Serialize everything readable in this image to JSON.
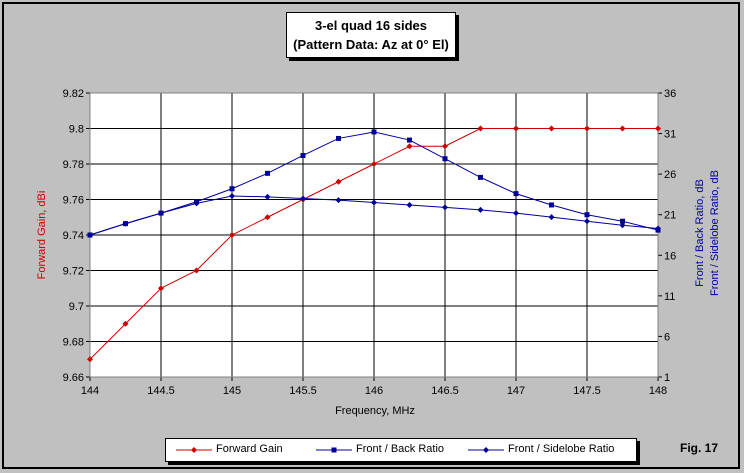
{
  "figure_label": "Fig. 17",
  "chart_data": {
    "type": "line",
    "title": "3-el quad 16 sides",
    "subtitle": "(Pattern Data: Az at 0° El)",
    "xlabel": "Frequency, MHz",
    "ylabel_left": "Forward Gain, dBi",
    "ylabel_right_1": "Front / Back Ratio, dB",
    "ylabel_right_2": "Front / Sidelobe Ratio, dB",
    "xlim": [
      144,
      148
    ],
    "ylim_left": [
      9.66,
      9.82
    ],
    "ylim_right": [
      1,
      36
    ],
    "x_ticks": [
      "144",
      "144.5",
      "145",
      "145.5",
      "146",
      "146.5",
      "147",
      "147.5",
      "148"
    ],
    "y_left_ticks": [
      "9.66",
      "9.68",
      "9.7",
      "9.72",
      "9.74",
      "9.76",
      "9.78",
      "9.8",
      "9.82"
    ],
    "y_right_ticks": [
      "1",
      "6",
      "11",
      "16",
      "21",
      "26",
      "31",
      "36"
    ],
    "grid": true,
    "legend_position": "bottom",
    "x": [
      144,
      144.25,
      144.5,
      144.75,
      145,
      145.25,
      145.5,
      145.75,
      146,
      146.25,
      146.5,
      146.75,
      147,
      147.25,
      147.5,
      147.75,
      148
    ],
    "series": [
      {
        "name": "Forward Gain",
        "axis": "left",
        "color": "#cc0000",
        "marker": "diamond",
        "values": [
          9.67,
          9.69,
          9.71,
          9.72,
          9.74,
          9.75,
          9.76,
          9.77,
          9.78,
          9.79,
          9.79,
          9.8,
          9.8,
          9.8,
          9.8,
          9.8,
          9.8
        ]
      },
      {
        "name": "Front / Back Ratio",
        "axis": "right",
        "color": "#000099",
        "marker": "square",
        "values": [
          18.5,
          19.9,
          21.2,
          22.6,
          24.2,
          26.1,
          28.3,
          30.4,
          31.2,
          30.2,
          27.9,
          25.6,
          23.6,
          22.2,
          21.0,
          20.2,
          19.1
        ]
      },
      {
        "name": "Front / Sidelobe Ratio",
        "axis": "right",
        "color": "#000099",
        "marker": "diamond",
        "values": [
          18.5,
          19.9,
          21.2,
          22.4,
          23.3,
          23.2,
          23.0,
          22.8,
          22.5,
          22.2,
          21.9,
          21.6,
          21.2,
          20.7,
          20.2,
          19.7,
          19.3
        ]
      }
    ]
  }
}
